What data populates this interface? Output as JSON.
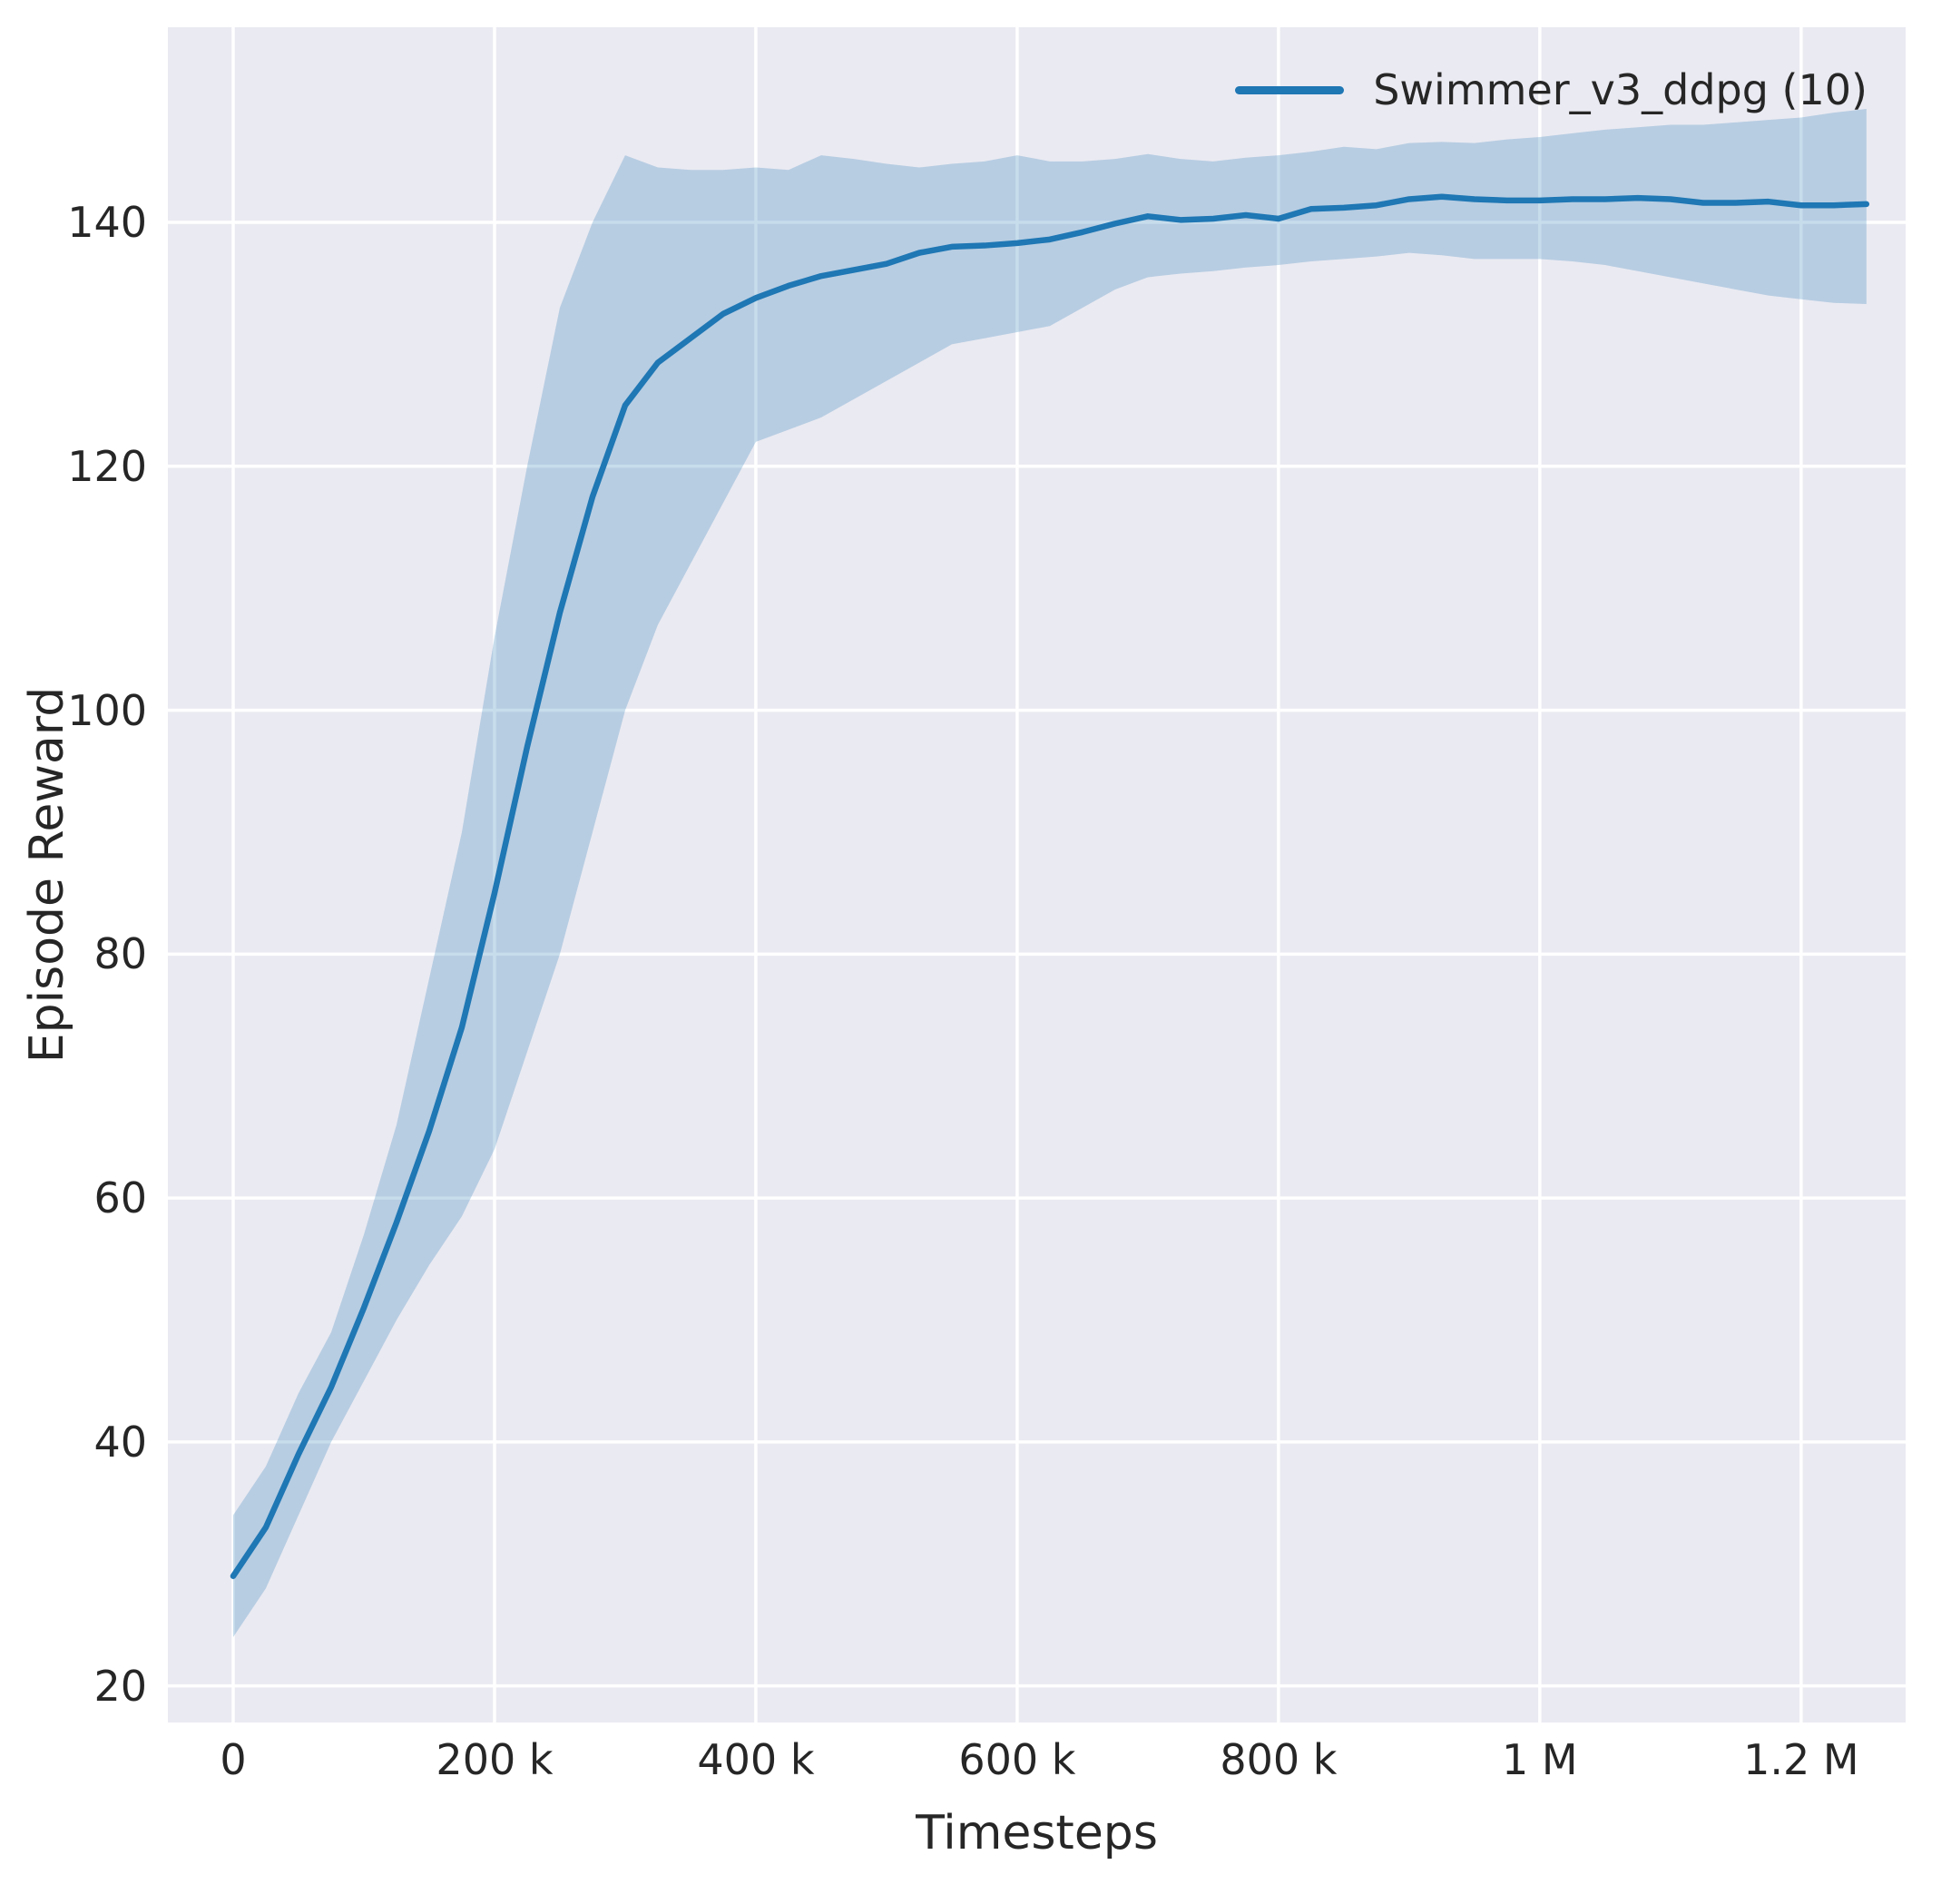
{
  "chart_data": {
    "type": "line",
    "title": "",
    "xlabel": "Timesteps",
    "ylabel": "Episode Reward",
    "grid": true,
    "legend_position": "upper right",
    "legend": [
      {
        "label": "Swimmer_v3_ddpg (10)"
      }
    ],
    "colors": {
      "axes_background": "#eaeaf2",
      "grid": "#ffffff",
      "line": "#1f77b4",
      "band": "#1f77b4",
      "text": "#262626"
    },
    "xlim": [
      -50000,
      1280000
    ],
    "ylim": [
      17,
      156
    ],
    "xticks": [
      {
        "value": 0,
        "label": "0"
      },
      {
        "value": 200000,
        "label": "200 k"
      },
      {
        "value": 400000,
        "label": "400 k"
      },
      {
        "value": 600000,
        "label": "600 k"
      },
      {
        "value": 800000,
        "label": "800 k"
      },
      {
        "value": 1000000,
        "label": "1 M"
      },
      {
        "value": 1200000,
        "label": "1.2 M"
      }
    ],
    "yticks": [
      {
        "value": 20,
        "label": "20"
      },
      {
        "value": 40,
        "label": "40"
      },
      {
        "value": 60,
        "label": "60"
      },
      {
        "value": 80,
        "label": "80"
      },
      {
        "value": 100,
        "label": "100"
      },
      {
        "value": 120,
        "label": "120"
      },
      {
        "value": 140,
        "label": "140"
      }
    ],
    "series": [
      {
        "name": "Swimmer_v3_ddpg (10)",
        "color": "#1f77b4",
        "band_opacity": 0.25,
        "line_width": 6.5,
        "x": [
          0,
          25000,
          50000,
          75000,
          100000,
          125000,
          150000,
          175000,
          200000,
          225000,
          250000,
          275000,
          300000,
          325000,
          350000,
          375000,
          400000,
          425000,
          450000,
          475000,
          500000,
          525000,
          550000,
          575000,
          600000,
          625000,
          650000,
          675000,
          700000,
          725000,
          750000,
          775000,
          800000,
          825000,
          850000,
          875000,
          900000,
          925000,
          950000,
          975000,
          1000000,
          1025000,
          1050000,
          1075000,
          1100000,
          1125000,
          1150000,
          1175000,
          1200000,
          1225000,
          1250000
        ],
        "mean": [
          29,
          33,
          39,
          44.5,
          51,
          58,
          65.5,
          74,
          85,
          97,
          108,
          117.5,
          125,
          128.5,
          130.5,
          132.5,
          133.8,
          134.8,
          135.6,
          136.1,
          136.6,
          137.5,
          138,
          138.1,
          138.3,
          138.6,
          139.2,
          139.9,
          140.5,
          140.2,
          140.3,
          140.6,
          140.3,
          141.1,
          141.2,
          141.4,
          141.9,
          142.1,
          141.9,
          141.8,
          141.8,
          141.9,
          141.9,
          142,
          141.9,
          141.6,
          141.6,
          141.7,
          141.4,
          141.4,
          141.5
        ],
        "lower": [
          24,
          28,
          34,
          40,
          45,
          50,
          54.5,
          58.5,
          64,
          72,
          80,
          90,
          100,
          107,
          112,
          117,
          122,
          123,
          124,
          125.5,
          127,
          128.5,
          130,
          130.5,
          131,
          131.5,
          133,
          134.5,
          135.5,
          135.8,
          136,
          136.3,
          136.5,
          136.8,
          137,
          137.2,
          137.5,
          137.3,
          137,
          137,
          137,
          136.8,
          136.5,
          136,
          135.5,
          135,
          134.5,
          134,
          133.7,
          133.4,
          133.3
        ],
        "upper": [
          34,
          38,
          44,
          49,
          57,
          66,
          78,
          90,
          106,
          120,
          133,
          140,
          145.5,
          144.5,
          144.3,
          144.3,
          144.5,
          144.3,
          145.5,
          145.2,
          144.8,
          144.5,
          144.8,
          145,
          145.5,
          145,
          145,
          145.2,
          145.6,
          145.2,
          145,
          145.3,
          145.5,
          145.8,
          146.2,
          146,
          146.5,
          146.6,
          146.5,
          146.8,
          147,
          147.3,
          147.6,
          147.8,
          148,
          148,
          148.2,
          148.4,
          148.6,
          149,
          149.3
        ]
      }
    ]
  }
}
